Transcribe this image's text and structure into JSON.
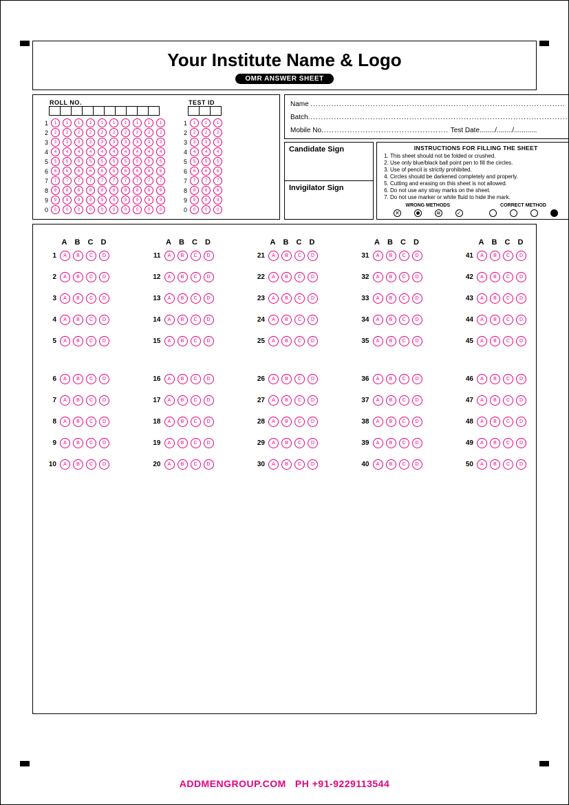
{
  "header": {
    "title": "Your Institute Name & Logo",
    "pill": "OMR ANSWER SHEET"
  },
  "roll": {
    "label": "ROLL NO.",
    "digits": 10,
    "rows": [
      "1",
      "2",
      "3",
      "4",
      "5",
      "6",
      "7",
      "8",
      "9",
      "0"
    ]
  },
  "testid": {
    "label": "TEST ID",
    "digits": 3,
    "rows": [
      "1",
      "2",
      "3",
      "4",
      "5",
      "6",
      "7",
      "8",
      "9",
      "0"
    ]
  },
  "fields": {
    "name": "Name",
    "batch": "Batch",
    "mobile": "Mobile No",
    "testdate": "Test Date",
    "datesep": "......../......../............"
  },
  "sign": {
    "candidate": "Candidate Sign",
    "invigilator": "Invigilator Sign"
  },
  "instructions": {
    "title": "INSTRUCTIONS FOR FILLING THE SHEET",
    "items": [
      "This sheet should not be folded or crushed.",
      "Use only blue/black ball point pen to fill the circles.",
      "Use of pencil is strictly prohibited.",
      "Circles should be darkened completely and properly.",
      "Cutting and erasing on this sheet is not allowed.",
      "Do not use any stray marks on the sheet.",
      "Do not use marker or white fluid to hide the mark."
    ],
    "wrong": "WRONG METHODS",
    "correct": "CORRECT METHOD"
  },
  "answers": {
    "options": [
      "A",
      "B",
      "C",
      "D"
    ],
    "columns": 5,
    "per_column": 10,
    "total": 50
  },
  "colors": {
    "bubble": "#e6007e",
    "border": "#000000",
    "footer": "#e6007e"
  },
  "footer": {
    "website": "ADDMENGROUP.COM",
    "phone": "PH +91-9229113544"
  }
}
